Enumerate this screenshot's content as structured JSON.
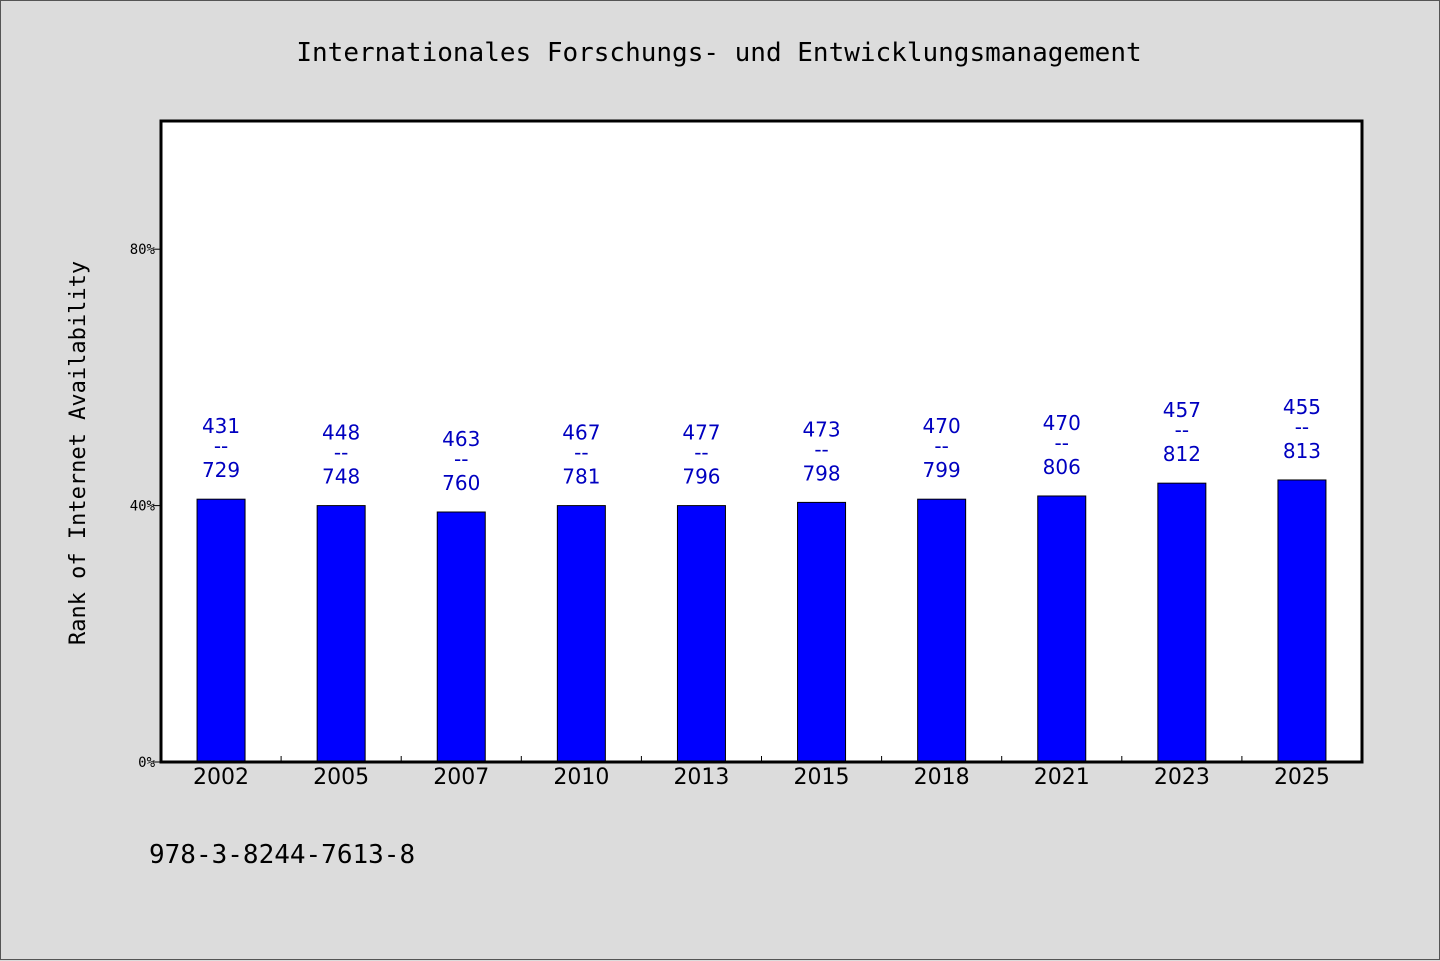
{
  "chart_data": {
    "type": "bar",
    "title": "Internationales Forschungs- und Entwicklungsmanagement",
    "xlabel": "",
    "ylabel": "Rank of Internet Availability",
    "categories": [
      "2002",
      "2005",
      "2007",
      "2010",
      "2013",
      "2015",
      "2018",
      "2021",
      "2023",
      "2025"
    ],
    "values": [
      41,
      40,
      39,
      40,
      40,
      40.5,
      41,
      41.5,
      43.5,
      44
    ],
    "data_labels": [
      {
        "top": "431",
        "sep": "--",
        "bottom": "729"
      },
      {
        "top": "448",
        "sep": "--",
        "bottom": "748"
      },
      {
        "top": "463",
        "sep": "--",
        "bottom": "760"
      },
      {
        "top": "467",
        "sep": "--",
        "bottom": "781"
      },
      {
        "top": "477",
        "sep": "--",
        "bottom": "796"
      },
      {
        "top": "473",
        "sep": "--",
        "bottom": "798"
      },
      {
        "top": "470",
        "sep": "--",
        "bottom": "799"
      },
      {
        "top": "470",
        "sep": "--",
        "bottom": "806"
      },
      {
        "top": "457",
        "sep": "--",
        "bottom": "812"
      },
      {
        "top": "455",
        "sep": "--",
        "bottom": "813"
      }
    ],
    "yticks": [
      {
        "value": 0,
        "label": "0%"
      },
      {
        "value": 40,
        "label": "40%"
      },
      {
        "value": 80,
        "label": "80%"
      }
    ],
    "ylim": [
      0,
      100
    ],
    "grid": false,
    "legend": "none",
    "colors": {
      "bar": "#0000ff",
      "bar_edge": "#000000",
      "label": "#0000c0"
    }
  },
  "footer": {
    "isbn": "978-3-8244-7613-8"
  }
}
